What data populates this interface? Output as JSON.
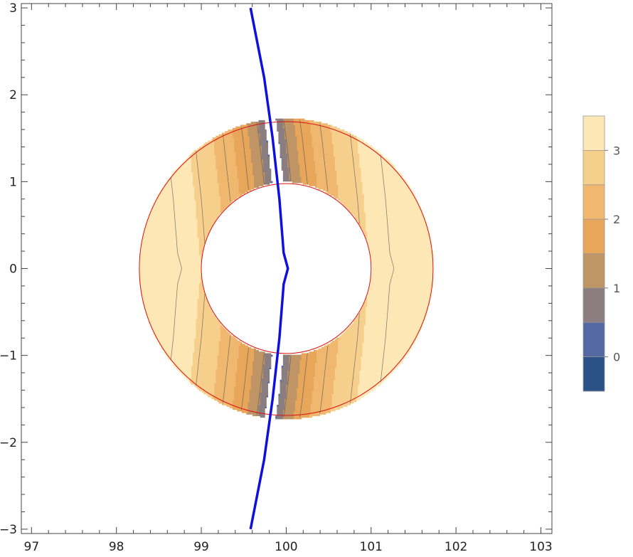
{
  "chart_data": {
    "type": "contour",
    "title": "",
    "xlabel": "",
    "ylabel": "",
    "xlim": [
      96.88,
      103.13
    ],
    "ylim": [
      -3.05,
      3.05
    ],
    "xticks": [
      97,
      98,
      99,
      100,
      101,
      102,
      103
    ],
    "yticks": [
      -3,
      -2,
      -1,
      0,
      1,
      2,
      3
    ],
    "xtick_labels": [
      "97",
      "98",
      "99",
      "100",
      "101",
      "102",
      "103"
    ],
    "ytick_labels": [
      "−3",
      "−2",
      "−1",
      "0",
      "1",
      "2",
      "3"
    ],
    "annulus": {
      "center": [
        100,
        0
      ],
      "inner_radius": 1.0,
      "outer_radius": 1.73
    },
    "contour_levels": [
      -0.5,
      0,
      0.5,
      1,
      1.5,
      2,
      2.5,
      3,
      3.5
    ],
    "contour_colors": [
      "#2a5286",
      "#5468a4",
      "#8b7e81",
      "#c09566",
      "#e8a65a",
      "#f0b86f",
      "#f7cf8c",
      "#fde8b5"
    ],
    "line_color": "#1010dd",
    "boundary_color": "#dd1111",
    "curve": [
      [
        99.58,
        3.0
      ],
      [
        99.74,
        2.2
      ],
      [
        99.84,
        1.5
      ],
      [
        99.92,
        0.8
      ],
      [
        99.97,
        0.18
      ],
      [
        100.02,
        0.0
      ],
      [
        99.97,
        -0.18
      ],
      [
        99.92,
        -0.8
      ],
      [
        99.84,
        -1.5
      ],
      [
        99.74,
        -2.2
      ],
      [
        99.58,
        -3.0
      ]
    ],
    "legend": {
      "placement": "right",
      "ticks": [
        0,
        1,
        2,
        3
      ],
      "tick_labels": [
        "0",
        "1",
        "2",
        "3"
      ]
    }
  }
}
